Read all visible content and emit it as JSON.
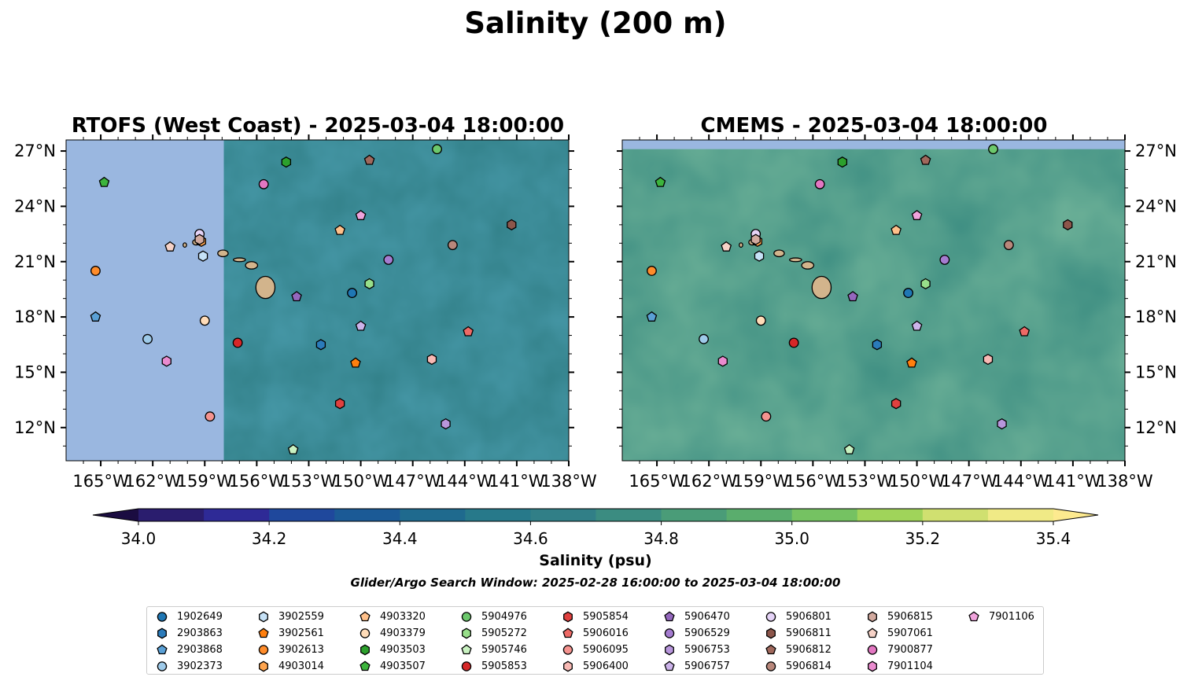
{
  "figure": {
    "title": "Salinity (200 m)",
    "search_window": "Glider/Argo Search Window: 2025-02-28 16:00:00 to 2025-03-04 18:00:00"
  },
  "colors": {
    "land": "#d2b48c",
    "no_data": "#9ab7e0",
    "colormap": [
      "#2a1d6e",
      "#2e2a96",
      "#1f489c",
      "#1b5a96",
      "#1f6a8e",
      "#27798a",
      "#317f87",
      "#3b8c81",
      "#4a9c78",
      "#5aad6d",
      "#75c262",
      "#a0d45a",
      "#d0e070",
      "#f0ea86"
    ]
  },
  "colorbar": {
    "label": "Salinity (psu)",
    "ticks": [
      "34.0",
      "34.2",
      "34.4",
      "34.6",
      "34.8",
      "35.0",
      "35.2",
      "35.4"
    ]
  },
  "chart_data": [
    {
      "type": "heatmap",
      "title": "RTOFS (West Coast) - 2025-03-04 18:00:00",
      "xlim": [
        -167,
        -138
      ],
      "ylim": [
        10.2,
        27.6
      ],
      "x_tick_labels": [
        "165°W",
        "162°W",
        "159°W",
        "156°W",
        "153°W",
        "150°W",
        "147°W",
        "144°W",
        "141°W",
        "138°W"
      ],
      "y_tick_labels": [
        "12°N",
        "15°N",
        "18°N",
        "21°N",
        "24°N",
        "27°N"
      ],
      "data_extent_lon": [
        -157.9,
        -138
      ],
      "value_range": [
        34.0,
        35.4
      ],
      "typical_value": 34.65,
      "markers": [
        {
          "id": "1902649",
          "lon": -150.5,
          "lat": 19.3
        },
        {
          "id": "2903863",
          "lon": -152.3,
          "lat": 16.5
        },
        {
          "id": "2903868",
          "lon": -165.3,
          "lat": 18.0
        },
        {
          "id": "3902373",
          "lon": -162.3,
          "lat": 16.8
        },
        {
          "id": "3902559",
          "lon": -159.1,
          "lat": 21.3
        },
        {
          "id": "3902561",
          "lon": -150.3,
          "lat": 15.5
        },
        {
          "id": "3902613",
          "lon": -165.3,
          "lat": 20.5
        },
        {
          "id": "4903014",
          "lon": -159.2,
          "lat": 22.1
        },
        {
          "id": "4903320",
          "lon": -151.2,
          "lat": 22.7
        },
        {
          "id": "4903379",
          "lon": -159.0,
          "lat": 17.8
        },
        {
          "id": "4903503",
          "lon": -154.3,
          "lat": 26.4
        },
        {
          "id": "4903507",
          "lon": -164.8,
          "lat": 25.3
        },
        {
          "id": "5904976",
          "lon": -145.6,
          "lat": 27.1
        },
        {
          "id": "5905272",
          "lon": -149.5,
          "lat": 19.8
        },
        {
          "id": "5905746",
          "lon": -153.9,
          "lat": 10.8
        },
        {
          "id": "5905853",
          "lon": -157.1,
          "lat": 16.6
        },
        {
          "id": "5905854",
          "lon": -151.2,
          "lat": 13.3
        },
        {
          "id": "5906016",
          "lon": -143.8,
          "lat": 17.2
        },
        {
          "id": "5906095",
          "lon": -158.7,
          "lat": 12.6
        },
        {
          "id": "5906400",
          "lon": -145.9,
          "lat": 15.7
        },
        {
          "id": "5906470",
          "lon": -153.7,
          "lat": 19.1
        },
        {
          "id": "5906529",
          "lon": -148.4,
          "lat": 21.1
        },
        {
          "id": "5906753",
          "lon": -145.1,
          "lat": 12.2
        },
        {
          "id": "5906757",
          "lon": -150.0,
          "lat": 17.5
        },
        {
          "id": "5906801",
          "lon": -159.3,
          "lat": 22.5
        },
        {
          "id": "5906811",
          "lon": -141.3,
          "lat": 23.0
        },
        {
          "id": "5906812",
          "lon": -149.5,
          "lat": 26.5
        },
        {
          "id": "5906814",
          "lon": -144.7,
          "lat": 21.9
        },
        {
          "id": "5906815",
          "lon": -159.3,
          "lat": 22.2
        },
        {
          "id": "5907061",
          "lon": -161.0,
          "lat": 21.8
        },
        {
          "id": "7900877",
          "lon": -155.6,
          "lat": 25.2
        },
        {
          "id": "7901104",
          "lon": -161.2,
          "lat": 15.6
        },
        {
          "id": "7901106",
          "lon": -150.0,
          "lat": 23.5
        }
      ]
    },
    {
      "type": "heatmap",
      "title": "CMEMS - 2025-03-04 18:00:00",
      "xlim": [
        -167,
        -138
      ],
      "ylim": [
        10.2,
        27.6
      ],
      "x_tick_labels": [
        "165°W",
        "162°W",
        "159°W",
        "156°W",
        "153°W",
        "150°W",
        "147°W",
        "144°W",
        "141°W",
        "138°W"
      ],
      "y_tick_labels": [
        "12°N",
        "15°N",
        "18°N",
        "21°N",
        "24°N",
        "27°N"
      ],
      "data_extent_lat": [
        10.2,
        27.1
      ],
      "value_range": [
        34.0,
        35.4
      ],
      "typical_value": 34.8,
      "markers": [
        {
          "id": "1902649",
          "lon": -150.5,
          "lat": 19.3
        },
        {
          "id": "2903863",
          "lon": -152.3,
          "lat": 16.5
        },
        {
          "id": "2903868",
          "lon": -165.3,
          "lat": 18.0
        },
        {
          "id": "3902373",
          "lon": -162.3,
          "lat": 16.8
        },
        {
          "id": "3902559",
          "lon": -159.1,
          "lat": 21.3
        },
        {
          "id": "3902561",
          "lon": -150.3,
          "lat": 15.5
        },
        {
          "id": "3902613",
          "lon": -165.3,
          "lat": 20.5
        },
        {
          "id": "4903014",
          "lon": -159.2,
          "lat": 22.1
        },
        {
          "id": "4903320",
          "lon": -151.2,
          "lat": 22.7
        },
        {
          "id": "4903379",
          "lon": -159.0,
          "lat": 17.8
        },
        {
          "id": "4903503",
          "lon": -154.3,
          "lat": 26.4
        },
        {
          "id": "4903507",
          "lon": -164.8,
          "lat": 25.3
        },
        {
          "id": "5904976",
          "lon": -145.6,
          "lat": 27.1
        },
        {
          "id": "5905272",
          "lon": -149.5,
          "lat": 19.8
        },
        {
          "id": "5905746",
          "lon": -153.9,
          "lat": 10.8
        },
        {
          "id": "5905853",
          "lon": -157.1,
          "lat": 16.6
        },
        {
          "id": "5905854",
          "lon": -151.2,
          "lat": 13.3
        },
        {
          "id": "5906016",
          "lon": -143.8,
          "lat": 17.2
        },
        {
          "id": "5906095",
          "lon": -158.7,
          "lat": 12.6
        },
        {
          "id": "5906400",
          "lon": -145.9,
          "lat": 15.7
        },
        {
          "id": "5906470",
          "lon": -153.7,
          "lat": 19.1
        },
        {
          "id": "5906529",
          "lon": -148.4,
          "lat": 21.1
        },
        {
          "id": "5906753",
          "lon": -145.1,
          "lat": 12.2
        },
        {
          "id": "5906757",
          "lon": -150.0,
          "lat": 17.5
        },
        {
          "id": "5906801",
          "lon": -159.3,
          "lat": 22.5
        },
        {
          "id": "5906811",
          "lon": -141.3,
          "lat": 23.0
        },
        {
          "id": "5906812",
          "lon": -149.5,
          "lat": 26.5
        },
        {
          "id": "5906814",
          "lon": -144.7,
          "lat": 21.9
        },
        {
          "id": "5906815",
          "lon": -159.3,
          "lat": 22.2
        },
        {
          "id": "5907061",
          "lon": -161.0,
          "lat": 21.8
        },
        {
          "id": "7900877",
          "lon": -155.6,
          "lat": 25.2
        },
        {
          "id": "7901104",
          "lon": -161.2,
          "lat": 15.6
        },
        {
          "id": "7901106",
          "lon": -150.0,
          "lat": 23.5
        }
      ]
    }
  ],
  "legend": {
    "items": [
      {
        "label": "1902649",
        "shape": "circle",
        "color": "#1f77b4"
      },
      {
        "label": "2903863",
        "shape": "hexagon",
        "color": "#2b7bba"
      },
      {
        "label": "2903868",
        "shape": "pentagon",
        "color": "#5aa0d6"
      },
      {
        "label": "3902373",
        "shape": "circle",
        "color": "#9ecae9"
      },
      {
        "label": "3902559",
        "shape": "hexagon",
        "color": "#c6e2f7"
      },
      {
        "label": "3902561",
        "shape": "pentagon",
        "color": "#ff7f0e"
      },
      {
        "label": "3902613",
        "shape": "circle",
        "color": "#ff8c2a"
      },
      {
        "label": "4903014",
        "shape": "hexagon",
        "color": "#ffa54f"
      },
      {
        "label": "4903320",
        "shape": "pentagon",
        "color": "#ffc08a"
      },
      {
        "label": "4903379",
        "shape": "circle",
        "color": "#ffdcb8"
      },
      {
        "label": "4903503",
        "shape": "hexagon",
        "color": "#2ca02c"
      },
      {
        "label": "4903507",
        "shape": "pentagon",
        "color": "#3cb43c"
      },
      {
        "label": "5904976",
        "shape": "circle",
        "color": "#6cc86c"
      },
      {
        "label": "5905272",
        "shape": "hexagon",
        "color": "#98df8a"
      },
      {
        "label": "5905746",
        "shape": "pentagon",
        "color": "#c9f2c1"
      },
      {
        "label": "5905853",
        "shape": "circle",
        "color": "#d62728"
      },
      {
        "label": "5905854",
        "shape": "hexagon",
        "color": "#e0403f"
      },
      {
        "label": "5906016",
        "shape": "pentagon",
        "color": "#ee6a66"
      },
      {
        "label": "5906095",
        "shape": "circle",
        "color": "#f5938f"
      },
      {
        "label": "5906400",
        "shape": "hexagon",
        "color": "#f8b9b4"
      },
      {
        "label": "5906470",
        "shape": "pentagon",
        "color": "#9467bd"
      },
      {
        "label": "5906529",
        "shape": "circle",
        "color": "#a57cd0"
      },
      {
        "label": "5906753",
        "shape": "hexagon",
        "color": "#b896dc"
      },
      {
        "label": "5906757",
        "shape": "pentagon",
        "color": "#ccb3ea"
      },
      {
        "label": "5906801",
        "shape": "circle",
        "color": "#e5d3f7"
      },
      {
        "label": "5906811",
        "shape": "hexagon",
        "color": "#8c564b"
      },
      {
        "label": "5906812",
        "shape": "pentagon",
        "color": "#a0685c"
      },
      {
        "label": "5906814",
        "shape": "circle",
        "color": "#b8877b"
      },
      {
        "label": "5906815",
        "shape": "hexagon",
        "color": "#d2aa9f"
      },
      {
        "label": "5907061",
        "shape": "pentagon",
        "color": "#f6d2c7"
      },
      {
        "label": "7900877",
        "shape": "circle",
        "color": "#e377c2"
      },
      {
        "label": "7901104",
        "shape": "hexagon",
        "color": "#ea8bcf"
      },
      {
        "label": "7901106",
        "shape": "pentagon",
        "color": "#f0a3dc"
      }
    ]
  }
}
